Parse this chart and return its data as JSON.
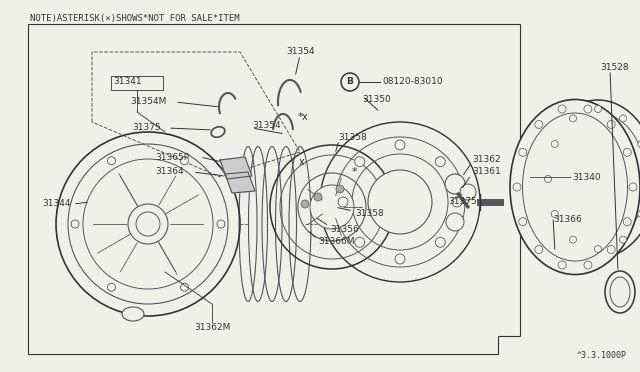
{
  "bg_color": "#f0f0eb",
  "white": "#ffffff",
  "line_color": "#555555",
  "dark_line": "#333333",
  "light_line": "#888888",
  "note_text": "NOTE)ASTERISK(×)SHOWS*NOT FOR SALE*ITEM",
  "diagram_id": "^3.3.1000P",
  "bolt_label": "08120-83010",
  "fig_w": 6.4,
  "fig_h": 3.72,
  "dpi": 100
}
